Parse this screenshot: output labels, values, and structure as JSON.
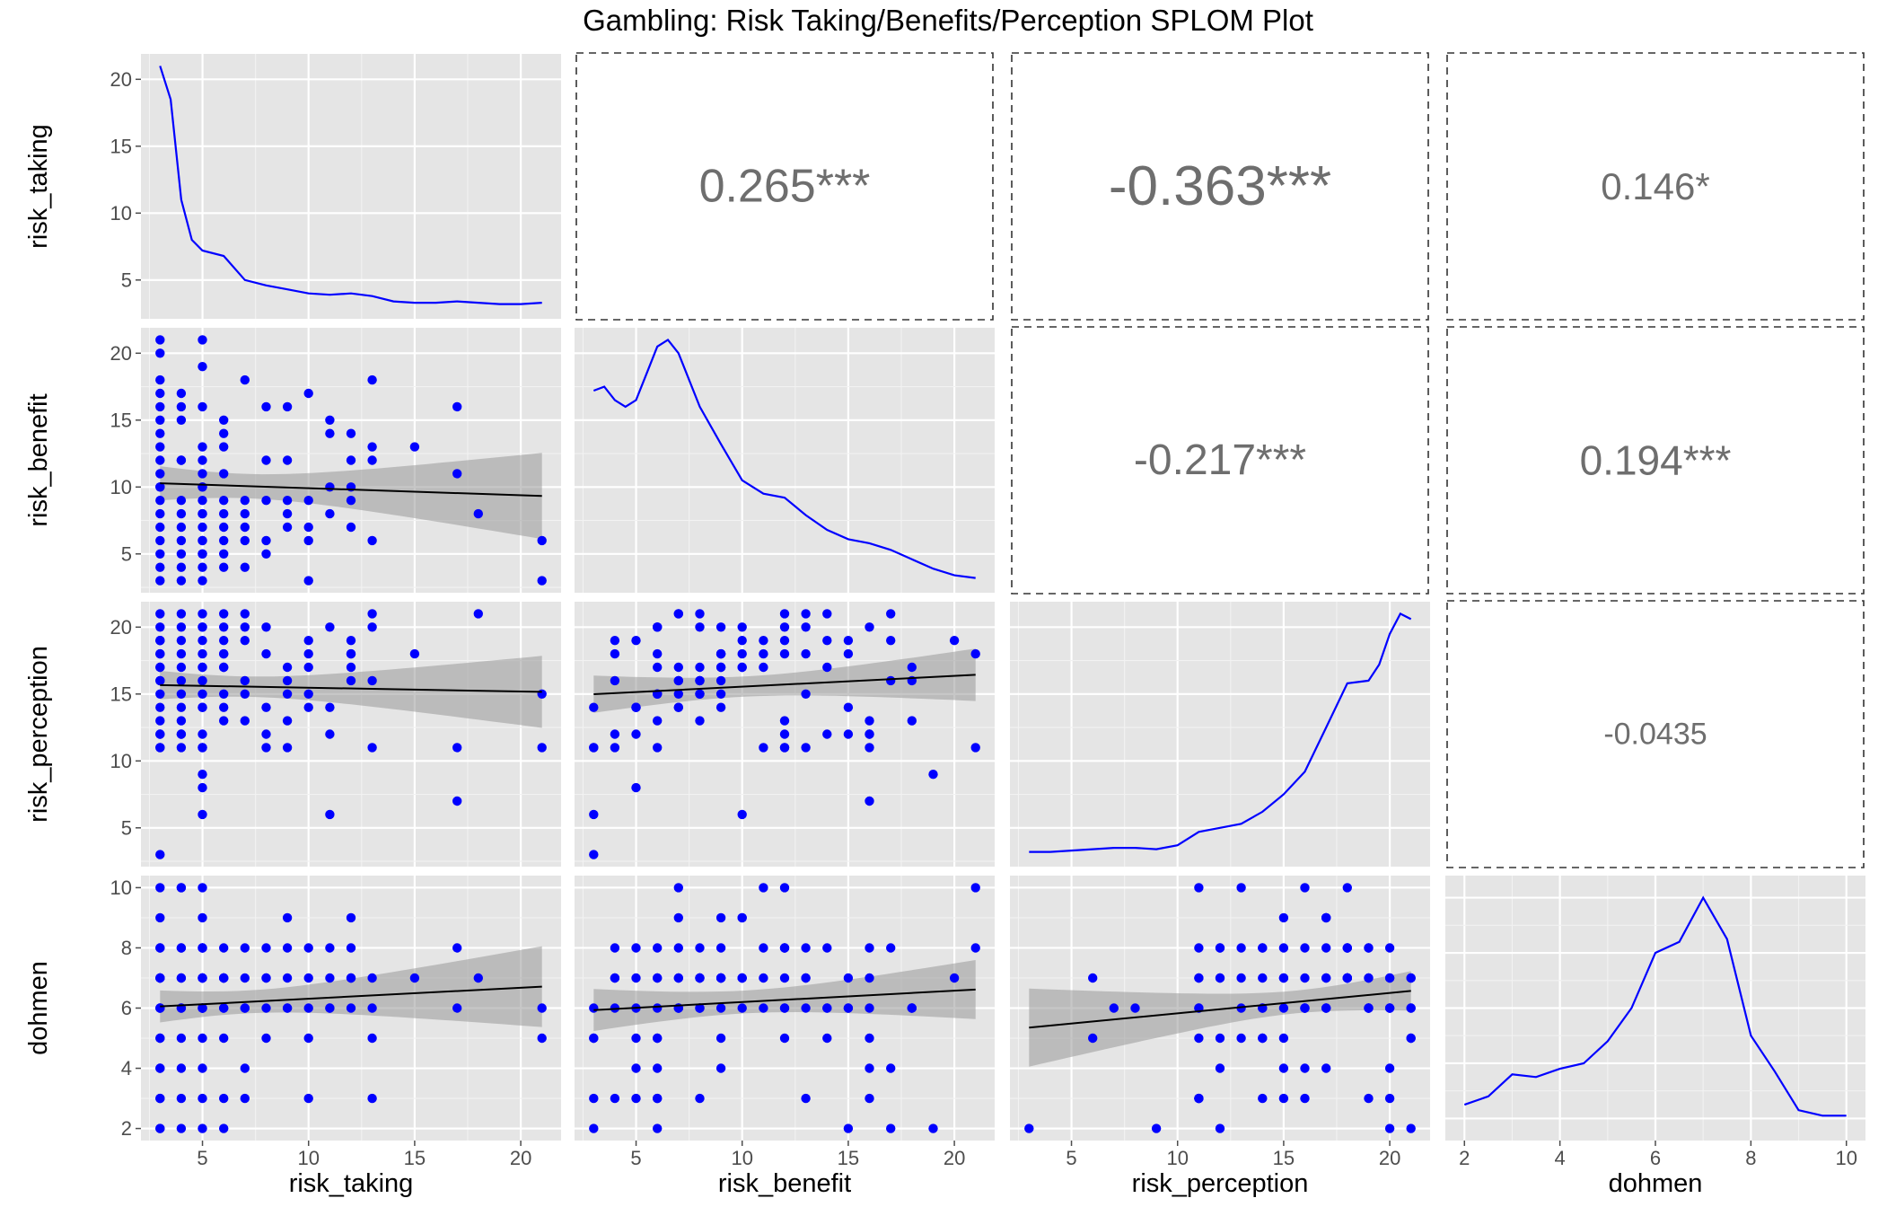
{
  "chart_data": {
    "type": "scatter",
    "title": "Gambling: Risk Taking/Benefits/Perception SPLOM Plot",
    "variables": [
      "risk_taking",
      "risk_benefit",
      "risk_perception",
      "dohmen"
    ],
    "ranges": {
      "risk_taking": [
        2.1,
        21.9
      ],
      "risk_benefit": [
        2.1,
        21.9
      ],
      "risk_perception": [
        2.1,
        21.9
      ],
      "dohmen": [
        1.6,
        10.4
      ]
    },
    "ticks": {
      "risk_taking": [
        5,
        10,
        15,
        20
      ],
      "risk_benefit": [
        5,
        10,
        15,
        20
      ],
      "risk_perception": [
        5,
        10,
        15,
        20
      ],
      "dohmen": [
        2,
        4,
        6,
        8,
        10
      ]
    },
    "density_ticks": {
      "risk_taking": [
        5,
        10,
        15,
        20
      ]
    },
    "correlations": [
      {
        "row": "risk_taking",
        "col": "risk_benefit",
        "label": "0.265***",
        "size": 52
      },
      {
        "row": "risk_taking",
        "col": "risk_perception",
        "label": "-0.363***",
        "size": 62
      },
      {
        "row": "risk_taking",
        "col": "dohmen",
        "label": "0.146*",
        "size": 42
      },
      {
        "row": "risk_benefit",
        "col": "risk_perception",
        "label": "-0.217***",
        "size": 48
      },
      {
        "row": "risk_benefit",
        "col": "dohmen",
        "label": "0.194***",
        "size": 46
      },
      {
        "row": "risk_perception",
        "col": "dohmen",
        "label": "-0.0435",
        "size": 34
      }
    ],
    "densities": {
      "risk_taking": [
        [
          3,
          21
        ],
        [
          3.5,
          18.5
        ],
        [
          4,
          11
        ],
        [
          4.5,
          8
        ],
        [
          5,
          7.2
        ],
        [
          6,
          6.8
        ],
        [
          7,
          5.0
        ],
        [
          8,
          4.6
        ],
        [
          9,
          4.3
        ],
        [
          10,
          4.0
        ],
        [
          11,
          3.9
        ],
        [
          12,
          4.0
        ],
        [
          13,
          3.8
        ],
        [
          14,
          3.4
        ],
        [
          15,
          3.3
        ],
        [
          16,
          3.3
        ],
        [
          17,
          3.4
        ],
        [
          18,
          3.3
        ],
        [
          19,
          3.2
        ],
        [
          20,
          3.2
        ],
        [
          21,
          3.3
        ]
      ],
      "risk_benefit": [
        [
          3,
          17.2
        ],
        [
          3.5,
          17.5
        ],
        [
          4,
          16.5
        ],
        [
          4.5,
          16
        ],
        [
          5,
          16.5
        ],
        [
          5.5,
          18.5
        ],
        [
          6,
          20.5
        ],
        [
          6.5,
          21
        ],
        [
          7,
          20
        ],
        [
          8,
          16
        ],
        [
          9,
          13.2
        ],
        [
          10,
          10.5
        ],
        [
          11,
          9.5
        ],
        [
          12,
          9.2
        ],
        [
          13,
          7.9
        ],
        [
          14,
          6.8
        ],
        [
          15,
          6.1
        ],
        [
          16,
          5.8
        ],
        [
          17,
          5.3
        ],
        [
          18,
          4.6
        ],
        [
          19,
          3.9
        ],
        [
          20,
          3.4
        ],
        [
          21,
          3.2
        ]
      ],
      "risk_perception": [
        [
          3,
          3.2
        ],
        [
          4,
          3.2
        ],
        [
          5,
          3.3
        ],
        [
          6,
          3.4
        ],
        [
          7,
          3.5
        ],
        [
          8,
          3.5
        ],
        [
          9,
          3.4
        ],
        [
          10,
          3.7
        ],
        [
          11,
          4.7
        ],
        [
          12,
          5.0
        ],
        [
          13,
          5.3
        ],
        [
          14,
          6.2
        ],
        [
          15,
          7.5
        ],
        [
          16,
          9.2
        ],
        [
          17,
          12.5
        ],
        [
          18,
          15.8
        ],
        [
          19,
          16.0
        ],
        [
          19.5,
          17.2
        ],
        [
          20,
          19.5
        ],
        [
          20.5,
          21
        ],
        [
          21,
          20.6
        ]
      ],
      "dohmen": [
        [
          2,
          2.5
        ],
        [
          2.5,
          2.8
        ],
        [
          3,
          3.6
        ],
        [
          3.5,
          3.5
        ],
        [
          4,
          3.8
        ],
        [
          4.5,
          4.0
        ],
        [
          5,
          4.8
        ],
        [
          5.5,
          6.0
        ],
        [
          6,
          8.0
        ],
        [
          6.5,
          8.4
        ],
        [
          7,
          10.0
        ],
        [
          7.5,
          8.5
        ],
        [
          8,
          5.0
        ],
        [
          8.5,
          3.7
        ],
        [
          9,
          2.3
        ],
        [
          9.5,
          2.1
        ],
        [
          10,
          2.1
        ]
      ]
    },
    "points": {
      "risk_taking": [
        3,
        3,
        3,
        3,
        3,
        3,
        3,
        3,
        3,
        3,
        3,
        3,
        3,
        3,
        3,
        3,
        3,
        3,
        4,
        4,
        4,
        4,
        4,
        4,
        4,
        4,
        4,
        4,
        4,
        5,
        5,
        5,
        5,
        5,
        5,
        5,
        5,
        5,
        5,
        5,
        5,
        5,
        5,
        5,
        5,
        5,
        6,
        6,
        6,
        6,
        6,
        6,
        6,
        6,
        6,
        7,
        7,
        7,
        7,
        7,
        7,
        8,
        8,
        8,
        8,
        8,
        9,
        9,
        9,
        9,
        9,
        10,
        10,
        10,
        10,
        10,
        11,
        11,
        11,
        11,
        12,
        12,
        12,
        12,
        12,
        13,
        13,
        13,
        13,
        15,
        17,
        17,
        18,
        21,
        21,
        3,
        4,
        5,
        6
      ],
      "risk_benefit": [
        3,
        4,
        5,
        6,
        7,
        8,
        9,
        10,
        11,
        12,
        13,
        14,
        15,
        16,
        17,
        18,
        20,
        21,
        3,
        4,
        5,
        6,
        7,
        8,
        9,
        15,
        16,
        17,
        12,
        3,
        5,
        6,
        7,
        8,
        9,
        10,
        11,
        12,
        13,
        16,
        19,
        21,
        5,
        8,
        4,
        6,
        4,
        5,
        6,
        7,
        8,
        9,
        13,
        14,
        15,
        4,
        6,
        7,
        8,
        9,
        18,
        5,
        6,
        9,
        12,
        16,
        7,
        8,
        9,
        12,
        16,
        3,
        6,
        7,
        9,
        17,
        8,
        10,
        14,
        15,
        7,
        9,
        10,
        12,
        14,
        6,
        12,
        13,
        18,
        13,
        11,
        16,
        8,
        3,
        6,
        10,
        12,
        10,
        11
      ],
      "risk_perception": [
        3,
        11,
        12,
        13,
        14,
        15,
        16,
        17,
        18,
        19,
        20,
        21,
        12,
        11,
        16,
        17,
        19,
        18,
        11,
        12,
        14,
        15,
        16,
        17,
        18,
        19,
        20,
        21,
        13,
        6,
        8,
        11,
        14,
        16,
        17,
        18,
        19,
        20,
        21,
        12,
        9,
        11,
        14,
        15,
        16,
        17,
        18,
        19,
        20,
        21,
        13,
        14,
        15,
        17,
        18,
        19,
        20,
        21,
        16,
        15,
        13,
        14,
        18,
        20,
        11,
        12,
        15,
        16,
        17,
        11,
        13,
        14,
        15,
        17,
        18,
        19,
        20,
        6,
        12,
        14,
        16,
        18,
        17,
        18,
        19,
        20,
        21,
        11,
        16,
        18,
        11,
        7,
        21,
        11,
        15,
        19,
        12,
        20,
        17
      ],
      "dohmen": [
        2,
        3,
        4,
        5,
        6,
        7,
        8,
        9,
        10,
        6,
        7,
        5,
        2,
        3,
        4,
        6,
        7,
        8,
        6,
        7,
        5,
        3,
        10,
        8,
        7,
        6,
        4,
        2,
        10,
        5,
        6,
        7,
        8,
        3,
        9,
        7,
        6,
        8,
        6,
        7,
        2,
        10,
        8,
        7,
        6,
        4,
        7,
        3,
        2,
        6,
        7,
        5,
        8,
        6,
        7,
        8,
        3,
        7,
        6,
        4,
        6,
        7,
        8,
        6,
        7,
        5,
        9,
        6,
        7,
        6,
        8,
        3,
        5,
        6,
        7,
        8,
        6,
        7,
        8,
        6,
        7,
        7,
        9,
        8,
        6,
        7,
        5,
        3,
        6,
        7,
        8,
        6,
        7,
        5,
        6,
        7,
        8,
        6,
        7
      ]
    }
  }
}
